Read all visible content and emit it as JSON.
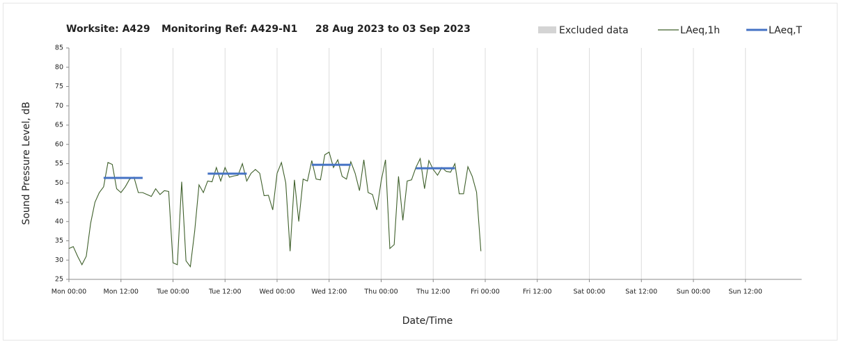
{
  "chart_data": {
    "type": "line",
    "title": [
      "Worksite: A429",
      "Monitoring Ref: A429-N1",
      "28 Aug 2023 to 03 Sep 2023"
    ],
    "x_label": "Date/Time",
    "y_label": "Sound Pressure Level, dB",
    "excluded": {
      "name": "Excluded data",
      "color": "#d4d4d4"
    },
    "x": [
      0,
      1,
      2,
      3,
      4,
      5,
      6,
      7,
      8,
      9,
      10,
      11,
      12,
      13,
      14,
      15,
      16,
      17,
      18,
      19,
      20,
      21,
      22,
      23,
      24,
      25,
      26,
      27,
      28,
      29,
      30,
      31,
      32,
      33,
      34,
      35,
      36,
      37,
      38,
      39,
      40,
      41,
      42,
      43,
      44,
      45,
      46,
      47,
      48,
      49,
      50,
      51,
      52,
      53,
      54,
      55,
      56,
      57,
      58,
      59,
      60,
      61,
      62,
      63,
      64,
      65,
      66,
      67,
      68,
      69,
      70,
      71,
      72,
      73,
      74,
      75,
      76,
      77,
      78,
      79,
      80,
      81,
      82,
      83,
      84,
      85,
      86,
      87,
      88,
      89,
      90,
      91,
      92,
      93,
      94,
      95
    ],
    "series": [
      {
        "name": "LAeq,1h",
        "color": "#3e5f2a",
        "values": [
          33,
          33.5,
          31,
          28.8,
          31,
          39.5,
          45,
          47.5,
          49,
          55.3,
          54.8,
          48.5,
          47.5,
          49,
          51,
          51.5,
          47.5,
          47.5,
          47,
          46.5,
          48.5,
          47,
          48,
          47.8,
          29.3,
          28.8,
          50.3,
          29.8,
          28.3,
          37.5,
          49.5,
          47.5,
          50.5,
          50.3,
          54,
          50.5,
          54,
          51.5,
          51.8,
          52,
          55,
          50.5,
          52.5,
          53.5,
          52.5,
          46.7,
          46.8,
          43,
          52.5,
          55.3,
          50,
          32.3,
          50.8,
          40,
          51,
          50.5,
          55.8,
          51,
          50.8,
          57.3,
          58,
          54,
          56,
          51.7,
          51,
          55.5,
          52.5,
          48,
          56,
          47.5,
          47,
          43,
          50.5,
          56,
          33,
          34,
          51.7,
          40.3,
          50.5,
          50.8,
          54,
          56.3,
          48.5,
          55.8,
          53.5,
          52,
          54,
          53,
          52.8,
          55,
          47.2,
          47.2,
          54.2,
          51.7,
          47.6,
          32.3
        ]
      },
      {
        "name": "LAeq,T",
        "color": "#4472c4",
        "segments": [
          {
            "x": [
              8,
              17
            ],
            "value": 51.3
          },
          {
            "x": [
              32,
              41
            ],
            "value": 52.4
          },
          {
            "x": [
              56,
              65
            ],
            "value": 54.7
          },
          {
            "x": [
              80,
              89
            ],
            "value": 53.8
          }
        ]
      }
    ],
    "xlim": [
      0,
      168
    ],
    "xticks": [
      {
        "value": 0,
        "label": "Mon 00:00"
      },
      {
        "value": 12,
        "label": "Mon 12:00"
      },
      {
        "value": 24,
        "label": "Tue 00:00"
      },
      {
        "value": 36,
        "label": "Tue 12:00"
      },
      {
        "value": 48,
        "label": "Wed 00:00"
      },
      {
        "value": 60,
        "label": "Wed 12:00"
      },
      {
        "value": 72,
        "label": "Thu 00:00"
      },
      {
        "value": 84,
        "label": "Thu 12:00"
      },
      {
        "value": 96,
        "label": "Fri 00:00"
      },
      {
        "value": 108,
        "label": "Fri 12:00"
      },
      {
        "value": 120,
        "label": "Sat 00:00"
      },
      {
        "value": 132,
        "label": "Sat 12:00"
      },
      {
        "value": 144,
        "label": "Sun 00:00"
      },
      {
        "value": 156,
        "label": "Sun 12:00"
      }
    ],
    "ylim": [
      25,
      85
    ],
    "yticks": [
      25,
      30,
      35,
      40,
      45,
      50,
      55,
      60,
      65,
      70,
      75,
      80,
      85
    ],
    "grid": "x"
  }
}
